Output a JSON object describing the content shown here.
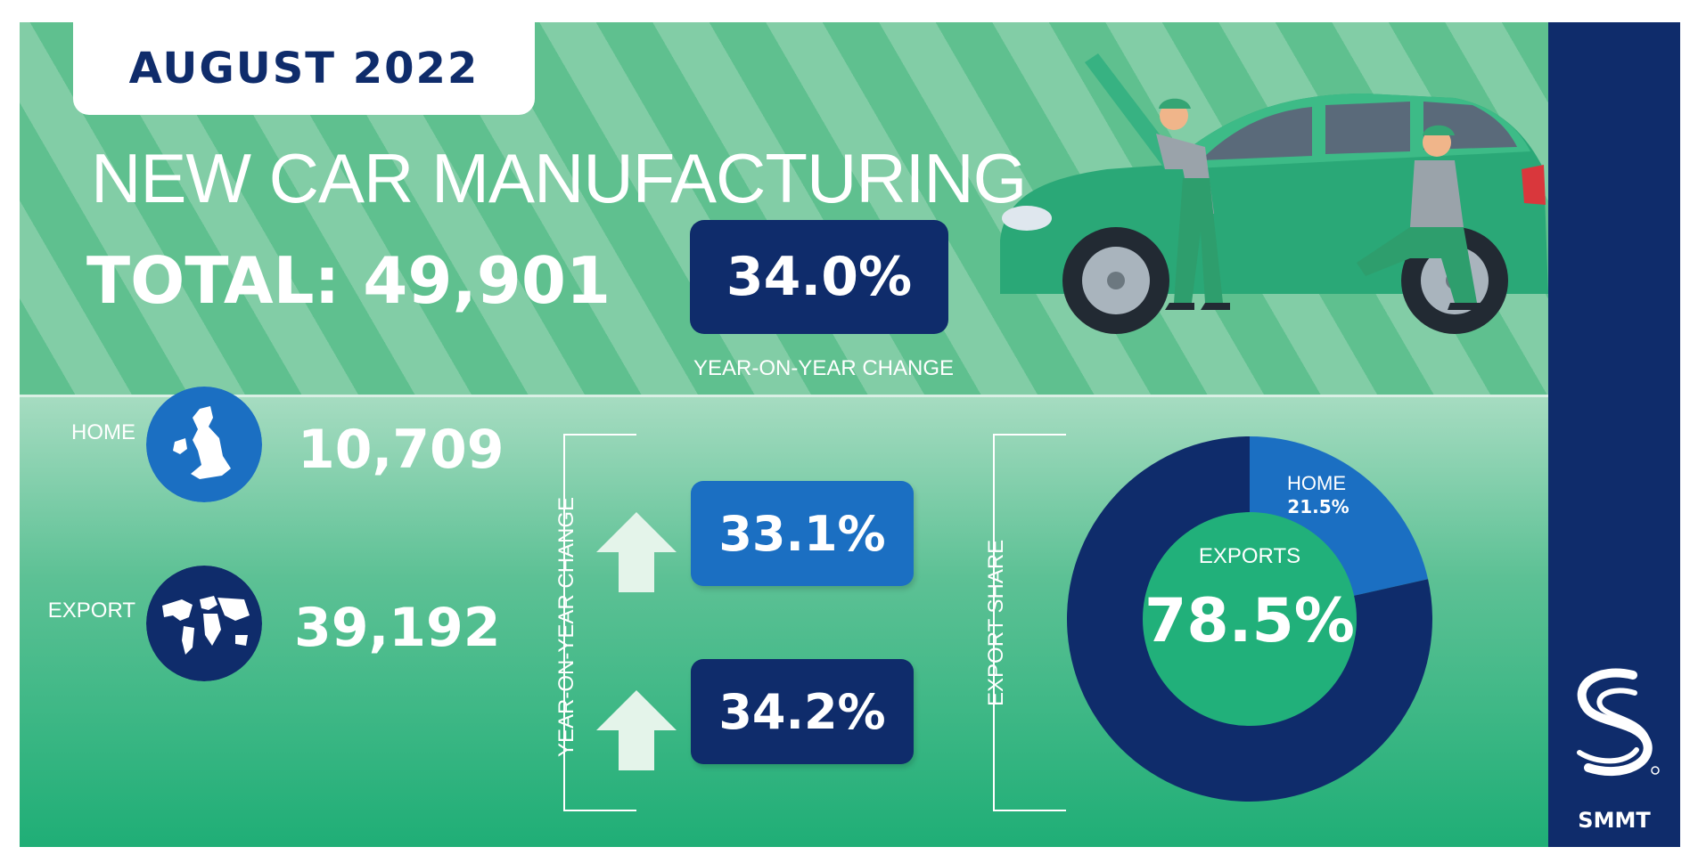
{
  "header": {
    "date": "AUGUST 2022",
    "title": "NEW CAR MANUFACTURING",
    "total_label": "TOTAL:",
    "total_value": "49,901",
    "yoy_value": "34.0%",
    "yoy_label": "YEAR-ON-YEAR CHANGE"
  },
  "rows": [
    {
      "label": "HOME",
      "value": "10,709",
      "change": "33.1%",
      "icon": "uk-map-icon",
      "box_color": "#1b6fc2"
    },
    {
      "label": "EXPORT",
      "value": "39,192",
      "change": "34.2%",
      "icon": "world-map-icon",
      "box_color": "#0f2c6b"
    }
  ],
  "change_axis_label": "YEAR-ON-YEAR CHANGE",
  "share_axis_label": "EXPORT SHARE",
  "donut": {
    "center_label": "EXPORTS",
    "center_value": "78.5%",
    "home_label": "HOME",
    "home_value": "21.5%"
  },
  "brand": {
    "name": "SMMT"
  },
  "colors": {
    "navy": "#0f2c6b",
    "blue": "#1b6fc2",
    "green": "#21b07a",
    "light_green": "#82cda6"
  },
  "chart_data": {
    "type": "pie",
    "categories": [
      "EXPORTS",
      "HOME"
    ],
    "values": [
      78.5,
      21.5
    ],
    "title": "EXPORT SHARE",
    "colors": [
      "#0f2c6b",
      "#1b6fc2"
    ]
  }
}
